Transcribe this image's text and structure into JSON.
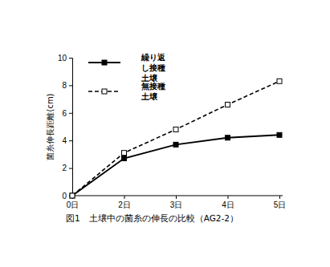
{
  "chart_data": {
    "type": "line",
    "title": "図1　土壌中の菌糸の伸長の比較（AG2-2）",
    "y_label": "菌糸伸長距離(cm)",
    "categories": [
      "0日",
      "2日",
      "3日",
      "4日",
      "5日"
    ],
    "series": [
      {
        "name": "繰り返し接種土壌",
        "color": "#000000",
        "marker": "square",
        "line_style": "solid",
        "values": [
          0,
          2.7,
          3.7,
          4.2,
          4.4
        ]
      },
      {
        "name": "無接種土壌",
        "color": "#000000",
        "marker": "square-open",
        "line_style": "dashed",
        "values": [
          0,
          3.1,
          4.8,
          6.6,
          8.3
        ]
      }
    ],
    "ylim": [
      0,
      10
    ],
    "yticks": [
      0,
      2,
      4,
      6,
      8,
      10
    ],
    "grid": false,
    "legend": "upper-left"
  }
}
